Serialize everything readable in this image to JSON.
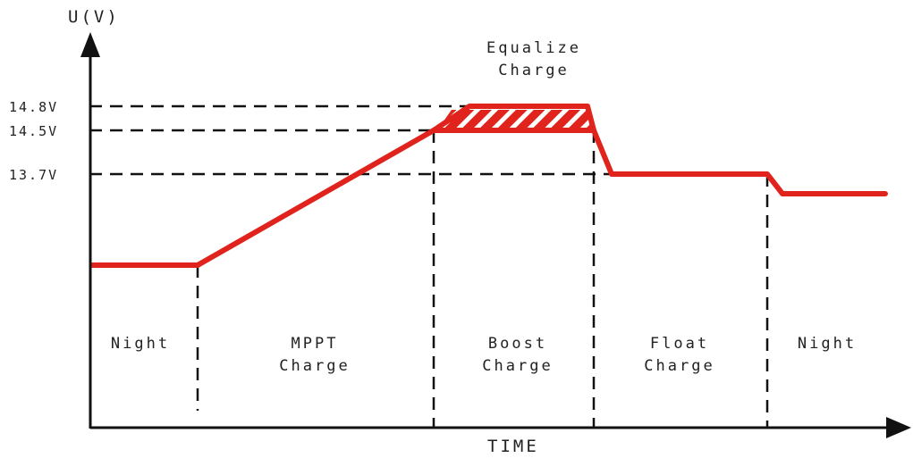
{
  "colors": {
    "curve": "#e0231c",
    "axis": "#111111",
    "dash": "#111111",
    "text": "#222222"
  },
  "axes": {
    "y_label": "U(V)",
    "x_label": "TIME"
  },
  "voltage_levels": [
    {
      "label": "14.8V",
      "value": 14.8
    },
    {
      "label": "14.5V",
      "value": 14.5
    },
    {
      "label": "13.7V",
      "value": 13.7
    }
  ],
  "stages": {
    "night_start": {
      "lines": [
        "Night"
      ]
    },
    "mppt": {
      "lines": [
        "MPPT",
        "Charge"
      ]
    },
    "boost": {
      "lines": [
        "Boost",
        "Charge"
      ]
    },
    "float": {
      "lines": [
        "Float",
        "Charge"
      ]
    },
    "night_end": {
      "lines": [
        "Night"
      ]
    },
    "equalize": {
      "lines": [
        "Equalize",
        "Charge"
      ]
    }
  }
}
